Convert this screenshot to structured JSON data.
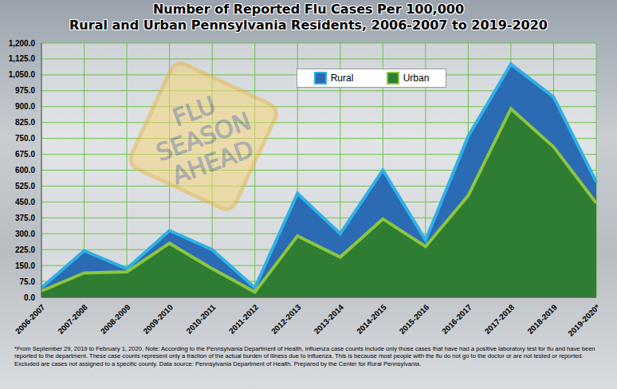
{
  "chart_data": {
    "type": "area",
    "title": "Number of Reported Flu Cases Per 100,000\nRural and Urban Pennsylvania Residents, 2006-2007 to 2019-2020",
    "categories": [
      "2006-2007",
      "2007-2008",
      "2008-2009",
      "2009-2010",
      "2010-2011",
      "2011-2012",
      "2012-2013",
      "2013-2014",
      "2014-2015",
      "2015-2016",
      "2016-2017",
      "2017-2018",
      "2018-2019",
      "2019-2020*"
    ],
    "series": [
      {
        "name": "Rural",
        "color": "#2a6bb3",
        "values": [
          45,
          220,
          135,
          315,
          225,
          45,
          490,
          300,
          600,
          270,
          760,
          1100,
          945,
          545
        ]
      },
      {
        "name": "Urban",
        "color": "#2f7d32",
        "values": [
          30,
          115,
          120,
          255,
          135,
          25,
          290,
          190,
          370,
          240,
          480,
          890,
          710,
          445
        ]
      }
    ],
    "ylim": [
      0,
      1200
    ],
    "yticks": [
      {
        "value": 0,
        "label": "0.0"
      },
      {
        "value": 75,
        "label": "75.0"
      },
      {
        "value": 150,
        "label": "150.0"
      },
      {
        "value": 225,
        "label": "225.0"
      },
      {
        "value": 300,
        "label": "300.0"
      },
      {
        "value": 375,
        "label": "375.0"
      },
      {
        "value": 450,
        "label": "450.0"
      },
      {
        "value": 525,
        "label": "525.0"
      },
      {
        "value": 600,
        "label": "600.0"
      },
      {
        "value": 675,
        "label": "675.0"
      },
      {
        "value": 750,
        "label": "750.0"
      },
      {
        "value": 825,
        "label": "825.0"
      },
      {
        "value": 900,
        "label": "900.0"
      },
      {
        "value": 975,
        "label": "975.0"
      },
      {
        "value": 1050,
        "label": "1,050.0"
      },
      {
        "value": 1125,
        "label": "1,125.0"
      },
      {
        "value": 1200,
        "label": "1,200.0"
      }
    ],
    "grid": true,
    "stacked": false,
    "legend": "top",
    "annotations": [
      "FLU SEASON AHEAD",
      "*From September 29, 2019 to February 1, 2020. Note: According to the Pennsylvania Department of Health, influenza case counts include only those cases that have had a positive laboratory test for flu and have been reported to the department. These case counts represent only a fraction of the actual burden of illness due to influenza. This is because most people with the flu do not go to the doctor or are not tested or reported. Excluded are cases not assigned to a specific county. Data source: Pennsylvania Department of Health. Prepared by the Center for Rural Pennsylvania."
    ]
  }
}
